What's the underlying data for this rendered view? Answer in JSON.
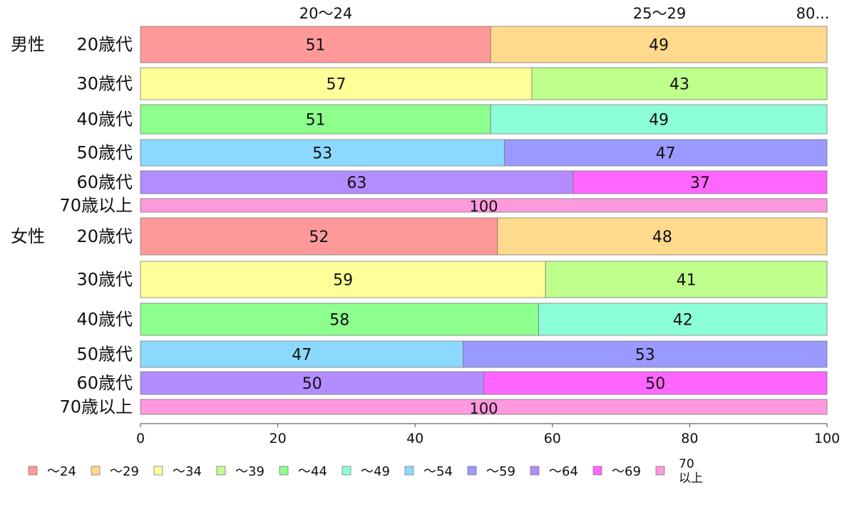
{
  "chart_data": {
    "type": "bar",
    "orientation": "horizontal",
    "stacked": true,
    "title": "",
    "xlabel": "",
    "ylabel": "",
    "xlim": [
      0,
      100
    ],
    "x_ticks": [
      0,
      20,
      40,
      60,
      80,
      100
    ],
    "grid": false,
    "legend_position": "bottom",
    "top_labels": [
      "20〜24",
      "25〜29",
      "80..."
    ],
    "groups": [
      {
        "label": "男性",
        "rows": [
          0,
          1,
          2,
          3,
          4,
          5
        ]
      },
      {
        "label": "女性",
        "rows": [
          6,
          7,
          8,
          9,
          10,
          11
        ]
      }
    ],
    "categories": [
      "20歳代",
      "30歳代",
      "40歳代",
      "50歳代",
      "60歳代",
      "70歳以上",
      "20歳代",
      "30歳代",
      "40歳代",
      "50歳代",
      "60歳代",
      "70歳以上"
    ],
    "series": [
      {
        "name": "〜24",
        "color": "#ff9999",
        "values": [
          51,
          null,
          null,
          null,
          null,
          null,
          52,
          null,
          null,
          null,
          null,
          null
        ]
      },
      {
        "name": "〜29",
        "color": "#ffd98c",
        "values": [
          49,
          null,
          null,
          null,
          null,
          null,
          48,
          null,
          null,
          null,
          null,
          null
        ]
      },
      {
        "name": "〜34",
        "color": "#ffff99",
        "values": [
          null,
          57,
          null,
          null,
          null,
          null,
          null,
          59,
          null,
          null,
          null,
          null
        ]
      },
      {
        "name": "〜39",
        "color": "#bfff8c",
        "values": [
          null,
          43,
          null,
          null,
          null,
          null,
          null,
          41,
          null,
          null,
          null,
          null
        ]
      },
      {
        "name": "〜44",
        "color": "#8cff8c",
        "values": [
          null,
          null,
          51,
          null,
          null,
          null,
          null,
          null,
          58,
          null,
          null,
          null
        ]
      },
      {
        "name": "〜49",
        "color": "#8cffd9",
        "values": [
          null,
          null,
          49,
          null,
          null,
          null,
          null,
          null,
          42,
          null,
          null,
          null
        ]
      },
      {
        "name": "〜54",
        "color": "#8cd9ff",
        "values": [
          null,
          null,
          null,
          53,
          null,
          null,
          null,
          null,
          null,
          47,
          null,
          null
        ]
      },
      {
        "name": "〜59",
        "color": "#9999ff",
        "values": [
          null,
          null,
          null,
          47,
          null,
          null,
          null,
          null,
          null,
          53,
          null,
          null
        ]
      },
      {
        "name": "〜64",
        "color": "#b38cff",
        "values": [
          null,
          null,
          null,
          null,
          63,
          null,
          null,
          null,
          null,
          null,
          50,
          null
        ]
      },
      {
        "name": "〜69",
        "color": "#ff66ff",
        "values": [
          null,
          null,
          null,
          null,
          37,
          null,
          null,
          null,
          null,
          null,
          50,
          null
        ]
      },
      {
        "name": "70\n以上",
        "color": "#ff99dd",
        "values": [
          null,
          null,
          null,
          null,
          null,
          100,
          null,
          null,
          null,
          null,
          null,
          100
        ]
      }
    ]
  }
}
